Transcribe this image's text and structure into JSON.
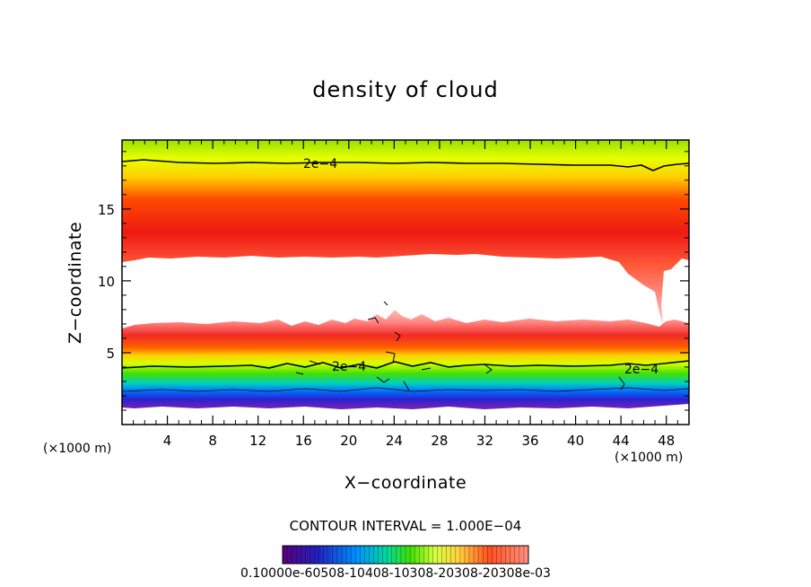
{
  "chart_data": {
    "type": "heatmap",
    "title": "density of cloud",
    "xlabel": "X−coordinate",
    "ylabel": "Z−coordinate",
    "x_unit": "(×1000 m)",
    "y_unit": "(×1000 m)",
    "xlim": [
      0,
      50
    ],
    "ylim": [
      0,
      19.8
    ],
    "x_ticks": [
      4,
      8,
      12,
      16,
      20,
      24,
      28,
      32,
      36,
      40,
      44,
      48
    ],
    "y_ticks": [
      5,
      10,
      15
    ],
    "contour_interval": "CONTOUR INTERVAL = 1.000E−04",
    "contour_labels": [
      "2e−4",
      "2e−4",
      "2e−4"
    ],
    "colorbar": {
      "min": 0.0001,
      "max": 0.0003,
      "labels_text": "0.10000e-60508-10408-10308-20308-20308e-03"
    },
    "bands": [
      {
        "z_bottom": 1.6,
        "z_top": 4.5,
        "description": "purple-blue-green layer"
      },
      {
        "z_bottom": 4.5,
        "z_top": 7.0,
        "description": "red layer"
      },
      {
        "z_bottom": 7.0,
        "z_top": 11.8,
        "description": "clear (below lowest contour)"
      },
      {
        "z_bottom": 11.8,
        "z_top": 19.8,
        "description": "red core near 14.5 fading to yellow-green at top"
      }
    ]
  }
}
